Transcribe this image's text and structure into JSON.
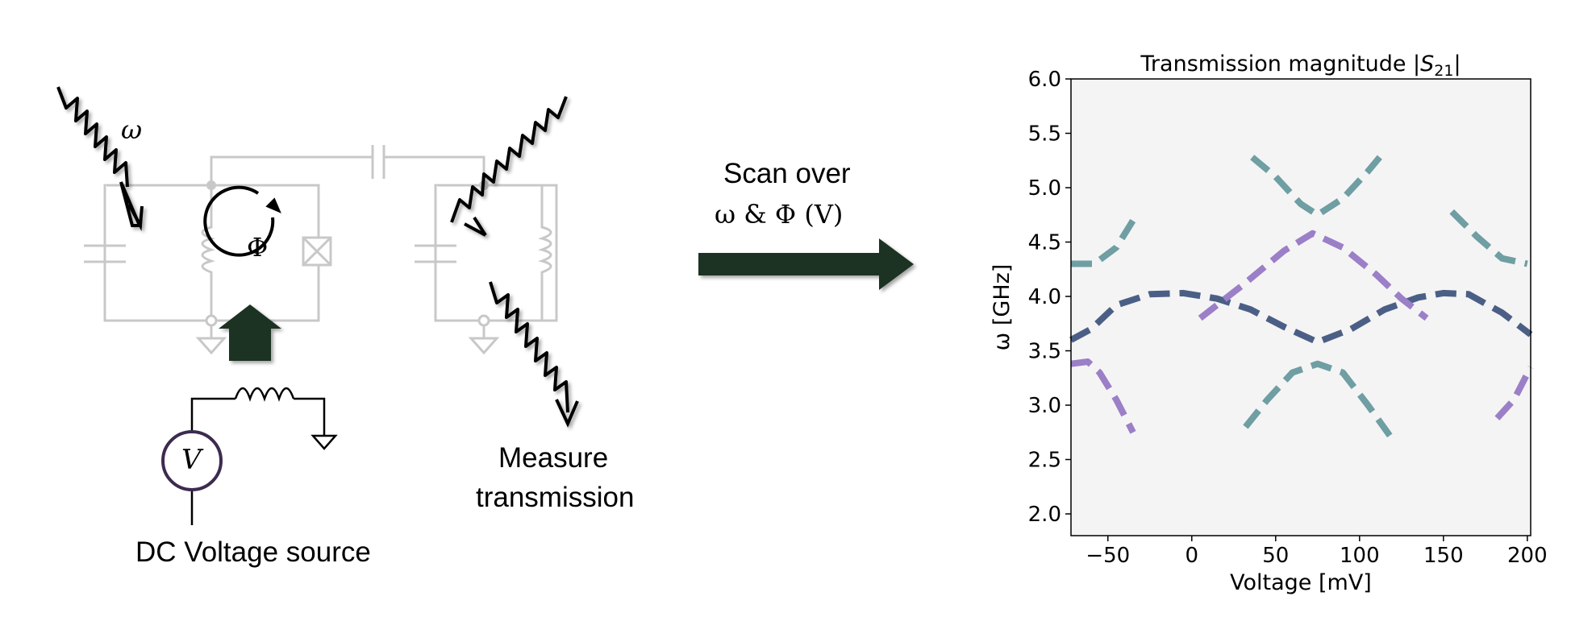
{
  "diagram": {
    "omega_symbol": "ω",
    "phi_symbol": "Φ",
    "voltmeter_symbol": "V",
    "dc_source_label": "DC Voltage source",
    "measure_label_line1": "Measure",
    "measure_label_line2": "transmission",
    "scan_line1": "Scan over",
    "scan_line2": "ω  &  Φ (V)"
  },
  "colors": {
    "circuit_gray": "#c8c8c8",
    "arrow_green": "#1f3322",
    "voltmeter_ring": "#3d2b4f",
    "teal": "#6f9ea3",
    "navy": "#4b5f86",
    "purple": "#9b7fc7"
  },
  "chart_data": {
    "type": "heatmap",
    "title": "Transmission magnitude |S21|",
    "title_prefix": "Transmission magnitude |",
    "title_S": "S",
    "title_sub": "21",
    "title_suffix": "|",
    "xlabel": "Voltage [mV]",
    "ylabel": "ω [GHz]",
    "xlim": [
      -72,
      202
    ],
    "ylim": [
      1.8,
      6.0
    ],
    "xticks": [
      -50,
      0,
      50,
      100,
      150,
      200
    ],
    "xtick_labels": [
      "−50",
      "0",
      "50",
      "100",
      "150",
      "200"
    ],
    "yticks": [
      2.0,
      2.5,
      3.0,
      3.5,
      4.0,
      4.5,
      5.0,
      5.5,
      6.0
    ],
    "ytick_labels": [
      "2.0",
      "2.5",
      "3.0",
      "3.5",
      "4.0",
      "4.5",
      "5.0",
      "5.5",
      "6.0"
    ],
    "grid": false,
    "series": [
      {
        "color": "teal",
        "x": [
          -72,
          -58,
          -45,
          -35
        ],
        "y": [
          4.3,
          4.3,
          4.45,
          4.7
        ]
      },
      {
        "color": "teal",
        "x": [
          36,
          50,
          65,
          75,
          90,
          105,
          112
        ],
        "y": [
          5.28,
          5.1,
          4.85,
          4.75,
          4.9,
          5.15,
          5.28
        ]
      },
      {
        "color": "teal",
        "x": [
          155,
          170,
          185,
          200
        ],
        "y": [
          4.78,
          4.55,
          4.35,
          4.3
        ]
      },
      {
        "color": "teal",
        "x": [
          32,
          45,
          60,
          75,
          90,
          105,
          118
        ],
        "y": [
          2.8,
          3.05,
          3.3,
          3.38,
          3.3,
          3.0,
          2.72
        ]
      },
      {
        "color": "navy",
        "x": [
          -72,
          -60,
          -45,
          -25,
          -5,
          15,
          35,
          55,
          75,
          95,
          115,
          135,
          150,
          165,
          185,
          202
        ],
        "y": [
          3.6,
          3.7,
          3.92,
          4.02,
          4.03,
          3.98,
          3.88,
          3.72,
          3.58,
          3.7,
          3.88,
          3.99,
          4.03,
          4.02,
          3.85,
          3.65
        ]
      },
      {
        "color": "purple",
        "x": [
          5,
          30,
          55,
          72,
          90,
          110,
          125,
          140
        ],
        "y": [
          3.8,
          4.1,
          4.42,
          4.58,
          4.45,
          4.2,
          3.98,
          3.8
        ]
      },
      {
        "color": "purple",
        "x": [
          -72,
          -62,
          -55,
          -45,
          -35
        ],
        "y": [
          3.38,
          3.4,
          3.3,
          3.05,
          2.75
        ]
      },
      {
        "color": "purple",
        "x": [
          182,
          192,
          202
        ],
        "y": [
          2.88,
          3.05,
          3.35
        ]
      }
    ]
  }
}
